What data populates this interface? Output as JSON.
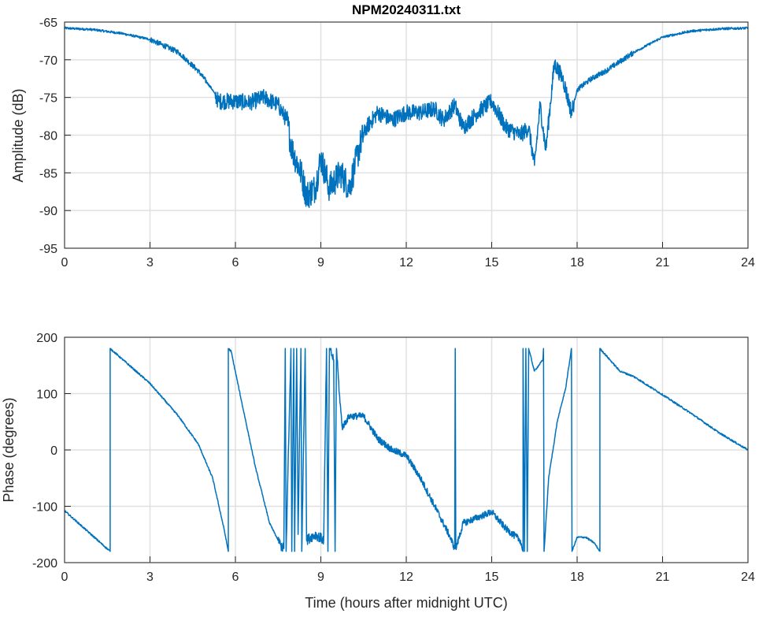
{
  "chart_data": [
    {
      "type": "line",
      "title": "NPM20240311.txt",
      "xlabel": "",
      "ylabel": "Amplitude (dB)",
      "xlim": [
        0,
        24
      ],
      "ylim": [
        -95,
        -65
      ],
      "xticks": [
        0,
        3,
        6,
        9,
        12,
        15,
        18,
        21,
        24
      ],
      "yticks": [
        -65,
        -70,
        -75,
        -80,
        -85,
        -90,
        -95
      ],
      "grid": true,
      "color": "#0072BD",
      "series": [
        {
          "name": "Amplitude",
          "x": [
            0,
            1,
            2,
            3,
            4,
            4.7,
            5.2,
            5.4,
            6,
            6.5,
            7,
            7.5,
            7.8,
            8.0,
            8.3,
            8.5,
            8.8,
            9,
            9.3,
            9.7,
            10.0,
            10.2,
            10.4,
            10.6,
            11,
            11.5,
            12,
            12.5,
            13,
            13.3,
            13.7,
            14,
            14.5,
            15,
            15.5,
            16,
            16.3,
            16.5,
            16.7,
            16.9,
            17.2,
            17.5,
            17.8,
            18,
            18.5,
            19,
            20,
            21,
            22,
            23,
            24
          ],
          "y": [
            -65.8,
            -66,
            -66.5,
            -67.3,
            -69,
            -71.5,
            -74,
            -75.5,
            -75.5,
            -75.7,
            -75,
            -76,
            -78,
            -82,
            -85,
            -88,
            -87,
            -83,
            -87,
            -85,
            -87,
            -84,
            -81,
            -79,
            -77,
            -78,
            -77,
            -77,
            -76.5,
            -78,
            -76,
            -79,
            -77,
            -75.5,
            -79,
            -80,
            -79,
            -84,
            -76,
            -82,
            -70.5,
            -72.5,
            -77,
            -74,
            -72.5,
            -71.5,
            -69,
            -67,
            -66.2,
            -65.9,
            -65.8
          ]
        }
      ]
    },
    {
      "type": "line",
      "title": "",
      "xlabel": "Time (hours after midnight UTC)",
      "ylabel": "Phase (degrees)",
      "xlim": [
        0,
        24
      ],
      "ylim": [
        -200,
        200
      ],
      "xticks": [
        0,
        3,
        6,
        9,
        12,
        15,
        18,
        21,
        24
      ],
      "yticks": [
        200,
        100,
        0,
        -100,
        -200
      ],
      "grid": true,
      "color": "#0072BD",
      "series": [
        {
          "name": "Phase",
          "x": [
            0,
            1.6,
            1.6,
            3,
            4,
            4.7,
            5.2,
            5.6,
            5.75,
            5.75,
            5.85,
            6.2,
            6.7,
            7.2,
            7.6,
            7.7,
            7.75,
            7.78,
            7.95,
            7.98,
            8.05,
            8.08,
            8.15,
            8.2,
            8.3,
            8.33,
            8.45,
            8.5,
            8.8,
            9.1,
            9.2,
            9.25,
            9.3,
            9.45,
            9.5,
            9.55,
            9.65,
            9.75,
            10,
            10.5,
            11,
            11.5,
            12,
            12.5,
            13,
            13.5,
            13.7,
            13.72,
            13.74,
            14,
            14.5,
            15,
            15.5,
            16,
            16.1,
            16.1,
            16.15,
            16.2,
            16.25,
            16.3,
            16.5,
            16.8,
            16.82,
            16.84,
            17,
            17.3,
            17.6,
            17.8,
            17.82,
            18,
            18.3,
            18.6,
            18.8,
            18.8,
            19.5,
            20,
            21,
            22,
            23,
            24
          ],
          "y": [
            -108,
            -180,
            180,
            118,
            60,
            10,
            -50,
            -140,
            -180,
            180,
            175,
            90,
            -30,
            -130,
            -170,
            -175,
            180,
            -180,
            180,
            -180,
            180,
            -180,
            180,
            -150,
            180,
            -180,
            180,
            -160,
            -150,
            -160,
            180,
            -180,
            180,
            160,
            -180,
            180,
            100,
            40,
            60,
            60,
            20,
            0,
            -10,
            -50,
            -100,
            -150,
            -175,
            180,
            -175,
            -130,
            -120,
            -110,
            -140,
            -160,
            -180,
            180,
            -180,
            180,
            -180,
            180,
            140,
            160,
            180,
            -180,
            -50,
            50,
            110,
            180,
            -180,
            -155,
            -155,
            -165,
            -180,
            180,
            140,
            130,
            98,
            65,
            30,
            0
          ]
        }
      ]
    }
  ]
}
